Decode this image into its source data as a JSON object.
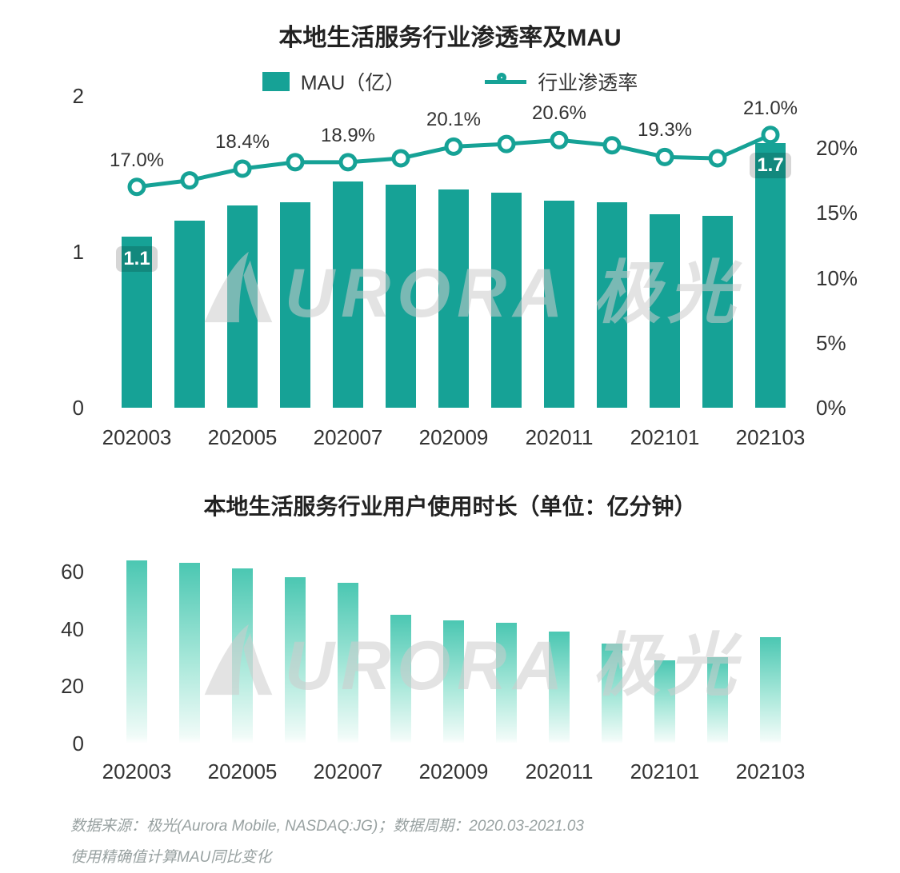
{
  "colors": {
    "teal": "#16a296",
    "bar_gradient_top": "#4bc7b2",
    "text_dark": "#333333",
    "title_dark": "#222222",
    "footer_gray": "#98a1a1",
    "watermark_gray": "#cdcdcd"
  },
  "watermark_text": "URORA 极光",
  "chart_data": [
    {
      "type": "combo-bar-line",
      "title": "本地生活服务行业渗透率及MAU",
      "categories": [
        "202003",
        "202004",
        "202005",
        "202006",
        "202007",
        "202008",
        "202009",
        "202010",
        "202011",
        "202012",
        "202101",
        "202102",
        "202103"
      ],
      "series": [
        {
          "name": "MAU（亿）",
          "type": "bar",
          "axis": "left",
          "values": [
            1.1,
            1.2,
            1.3,
            1.32,
            1.45,
            1.43,
            1.4,
            1.38,
            1.33,
            1.32,
            1.24,
            1.23,
            1.7
          ]
        },
        {
          "name": "行业渗透率",
          "type": "line",
          "axis": "right",
          "values": [
            17.0,
            17.5,
            18.4,
            18.9,
            18.9,
            19.2,
            20.1,
            20.3,
            20.6,
            20.2,
            19.3,
            19.2,
            21.0
          ]
        }
      ],
      "bar_value_labels": [
        {
          "index": 0,
          "text": "1.1"
        },
        {
          "index": 12,
          "text": "1.7"
        }
      ],
      "line_point_labels": [
        {
          "index": 0,
          "text": "17.0%"
        },
        {
          "index": 2,
          "text": "18.4%"
        },
        {
          "index": 4,
          "text": "18.9%"
        },
        {
          "index": 6,
          "text": "20.1%"
        },
        {
          "index": 8,
          "text": "20.6%"
        },
        {
          "index": 10,
          "text": "19.3%"
        },
        {
          "index": 12,
          "text": "21.0%"
        }
      ],
      "left_axis": {
        "min": 0,
        "max": 2,
        "ticks": [
          2,
          1,
          0
        ]
      },
      "right_axis": {
        "min": 0,
        "max": 24,
        "tick_values": [
          20,
          15,
          10,
          5,
          0
        ],
        "tick_labels": [
          "20%",
          "15%",
          "10%",
          "5%",
          "0%"
        ]
      },
      "x_tick_labels": [
        "202003",
        "202005",
        "202007",
        "202009",
        "202011",
        "202101",
        "202103"
      ],
      "grid": false,
      "legend_position": "top"
    },
    {
      "type": "bar",
      "title": "本地生活服务行业用户使用时长（单位：亿分钟）",
      "categories": [
        "202003",
        "202004",
        "202005",
        "202006",
        "202007",
        "202008",
        "202009",
        "202010",
        "202011",
        "202012",
        "202101",
        "202102",
        "202103"
      ],
      "values": [
        64,
        63,
        61,
        58,
        56,
        45,
        43,
        42,
        39,
        35,
        29,
        30,
        37
      ],
      "ylabel": "亿分钟",
      "y_axis": {
        "min": 0,
        "max": 70,
        "ticks": [
          60,
          40,
          20,
          0
        ]
      },
      "x_tick_labels": [
        "202003",
        "202005",
        "202007",
        "202009",
        "202011",
        "202101",
        "202103"
      ],
      "grid": false
    }
  ],
  "footer": {
    "line1": "数据来源：极光(Aurora Mobile, NASDAQ:JG)；数据周期：2020.03-2021.03",
    "line2": "使用精确值计算MAU同比变化"
  }
}
